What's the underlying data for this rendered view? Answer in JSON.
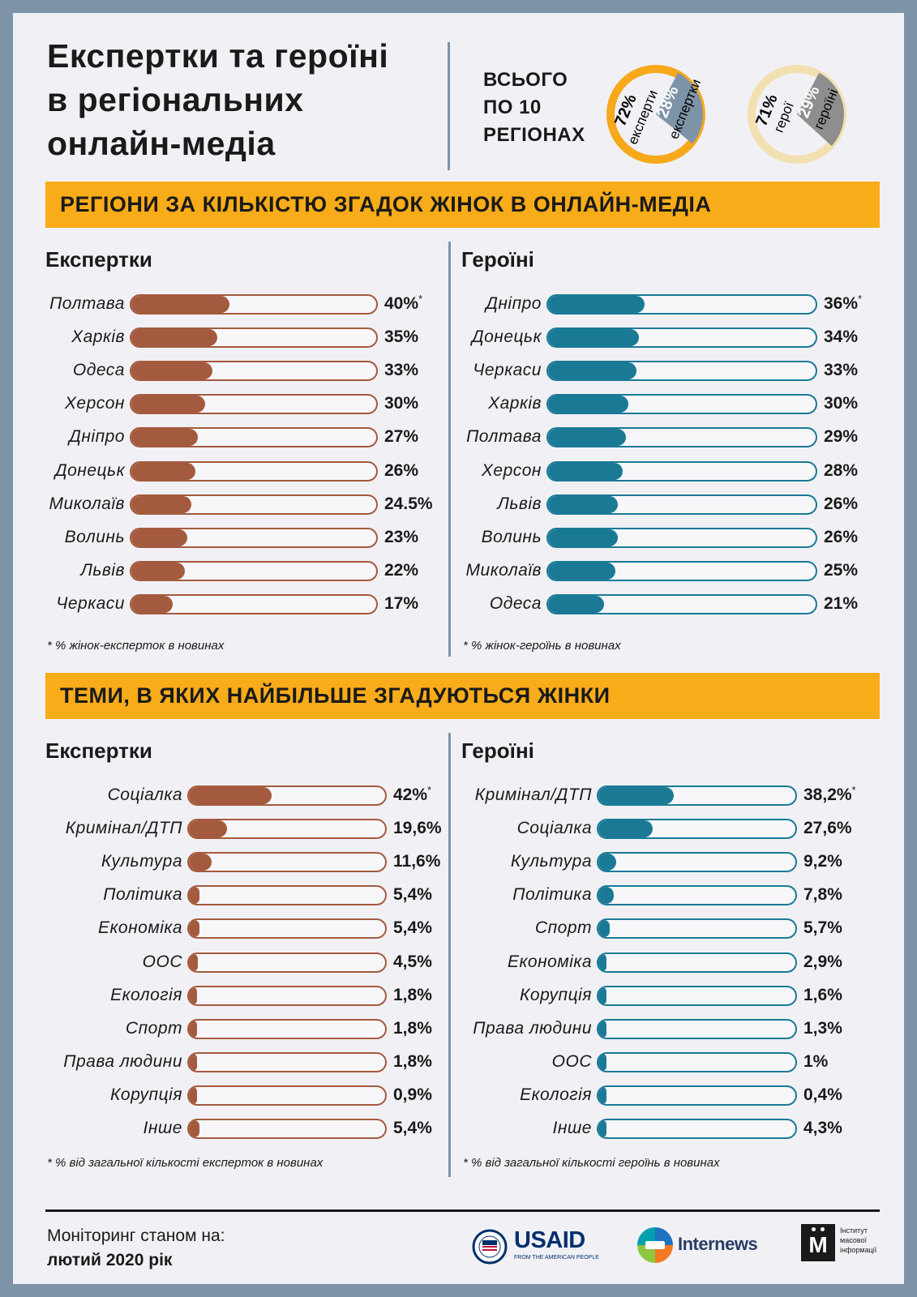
{
  "title": [
    "Експертки та героїні",
    "в регіональних",
    "онлайн-медіа"
  ],
  "total": {
    "label": [
      "ВСЬОГО",
      "ПО 10",
      "РЕГІОНАХ"
    ],
    "experts": {
      "big_pct": "72%",
      "big_label": "експерти",
      "small_pct": "28%",
      "small_label": "експертки",
      "share": 0.28
    },
    "heroes": {
      "big_pct": "71%",
      "big_label": "герої",
      "small_pct": "29%",
      "small_label": "героїні",
      "share": 0.29
    }
  },
  "banner1": "РЕГІОНИ ЗА КІЛЬКІСТЮ ЗГАДОК ЖІНОК В ОНЛАЙН-МЕДІА",
  "banner2": "ТЕМИ, В ЯКИХ НАЙБІЛЬШЕ ЗГАДУЮТЬСЯ ЖІНКИ",
  "colors": {
    "experts": "#a45a3e",
    "heroes": "#1a7a96",
    "banner": "#f9ac19",
    "donut_orange": "#f7a81b",
    "donut_grey": "#7d93a8",
    "donut_beige": "#f2e0b0",
    "donut_dark": "#8e8e8e"
  },
  "chart_data": [
    {
      "type": "bar",
      "title": "Експертки",
      "categories": [
        "Полтава",
        "Харків",
        "Одеса",
        "Херсон",
        "Дніпро",
        "Донецьк",
        "Миколаїв",
        "Волинь",
        "Львів",
        "Черкаси"
      ],
      "values": [
        40,
        35,
        33,
        30,
        27,
        26,
        24.5,
        23,
        22,
        17
      ],
      "labels": [
        "40%",
        "35%",
        "33%",
        "30%",
        "27%",
        "26%",
        "24.5%",
        "23%",
        "22%",
        "17%"
      ],
      "note": "* % жінок-експерток в новинах"
    },
    {
      "type": "bar",
      "title": "Героїні",
      "categories": [
        "Дніпро",
        "Донецьк",
        "Черкаси",
        "Харків",
        "Полтава",
        "Херсон",
        "Львів",
        "Волинь",
        "Миколаїв",
        "Одеса"
      ],
      "values": [
        36,
        34,
        33,
        30,
        29,
        28,
        26,
        26,
        25,
        21
      ],
      "labels": [
        "36%",
        "34%",
        "33%",
        "30%",
        "29%",
        "28%",
        "26%",
        "26%",
        "25%",
        "21%"
      ],
      "note": "* % жінок-героїнь в новинах"
    },
    {
      "type": "bar",
      "title": "Експертки",
      "categories": [
        "Соціалка",
        "Кримінал/ДТП",
        "Культура",
        "Політика",
        "Економіка",
        "ООС",
        "Екологія",
        "Спорт",
        "Права людини",
        "Корупція",
        "Інше"
      ],
      "values": [
        42,
        19.6,
        11.6,
        5.4,
        5.4,
        4.5,
        1.8,
        1.8,
        1.8,
        0.9,
        5.4
      ],
      "labels": [
        "42%",
        "19,6%",
        "11,6%",
        "5,4%",
        "5,4%",
        "4,5%",
        "1,8%",
        "1,8%",
        "1,8%",
        "0,9%",
        "5,4%"
      ],
      "note": "* % від загальної кількості експерток в новинах"
    },
    {
      "type": "bar",
      "title": "Героїні",
      "categories": [
        "Кримінал/ДТП",
        "Соціалка",
        "Культура",
        "Політика",
        "Спорт",
        "Економіка",
        "Корупція",
        "Права людини",
        "ООС",
        "Екологія",
        "Інше"
      ],
      "values": [
        38.2,
        27.6,
        9.2,
        7.8,
        5.7,
        2.9,
        1.6,
        1.3,
        1,
        0.4,
        4.3
      ],
      "labels": [
        "38,2%",
        "27,6%",
        "9,2%",
        "7,8%",
        "5,7%",
        "2,9%",
        "1,6%",
        "1,3%",
        "1%",
        "0,4%",
        "4,3%"
      ],
      "note": "* % від загальної кількості героїнь в новинах"
    }
  ],
  "footer": {
    "line1": "Моніторинг станом на:",
    "line2": "лютий 2020 рік"
  },
  "logos": {
    "usaid": "USAID",
    "usaid_sub": "FROM THE AMERICAN PEOPLE",
    "internews": "Internews",
    "imi": "Інститут масової інформації",
    "imi_mark": "М"
  }
}
